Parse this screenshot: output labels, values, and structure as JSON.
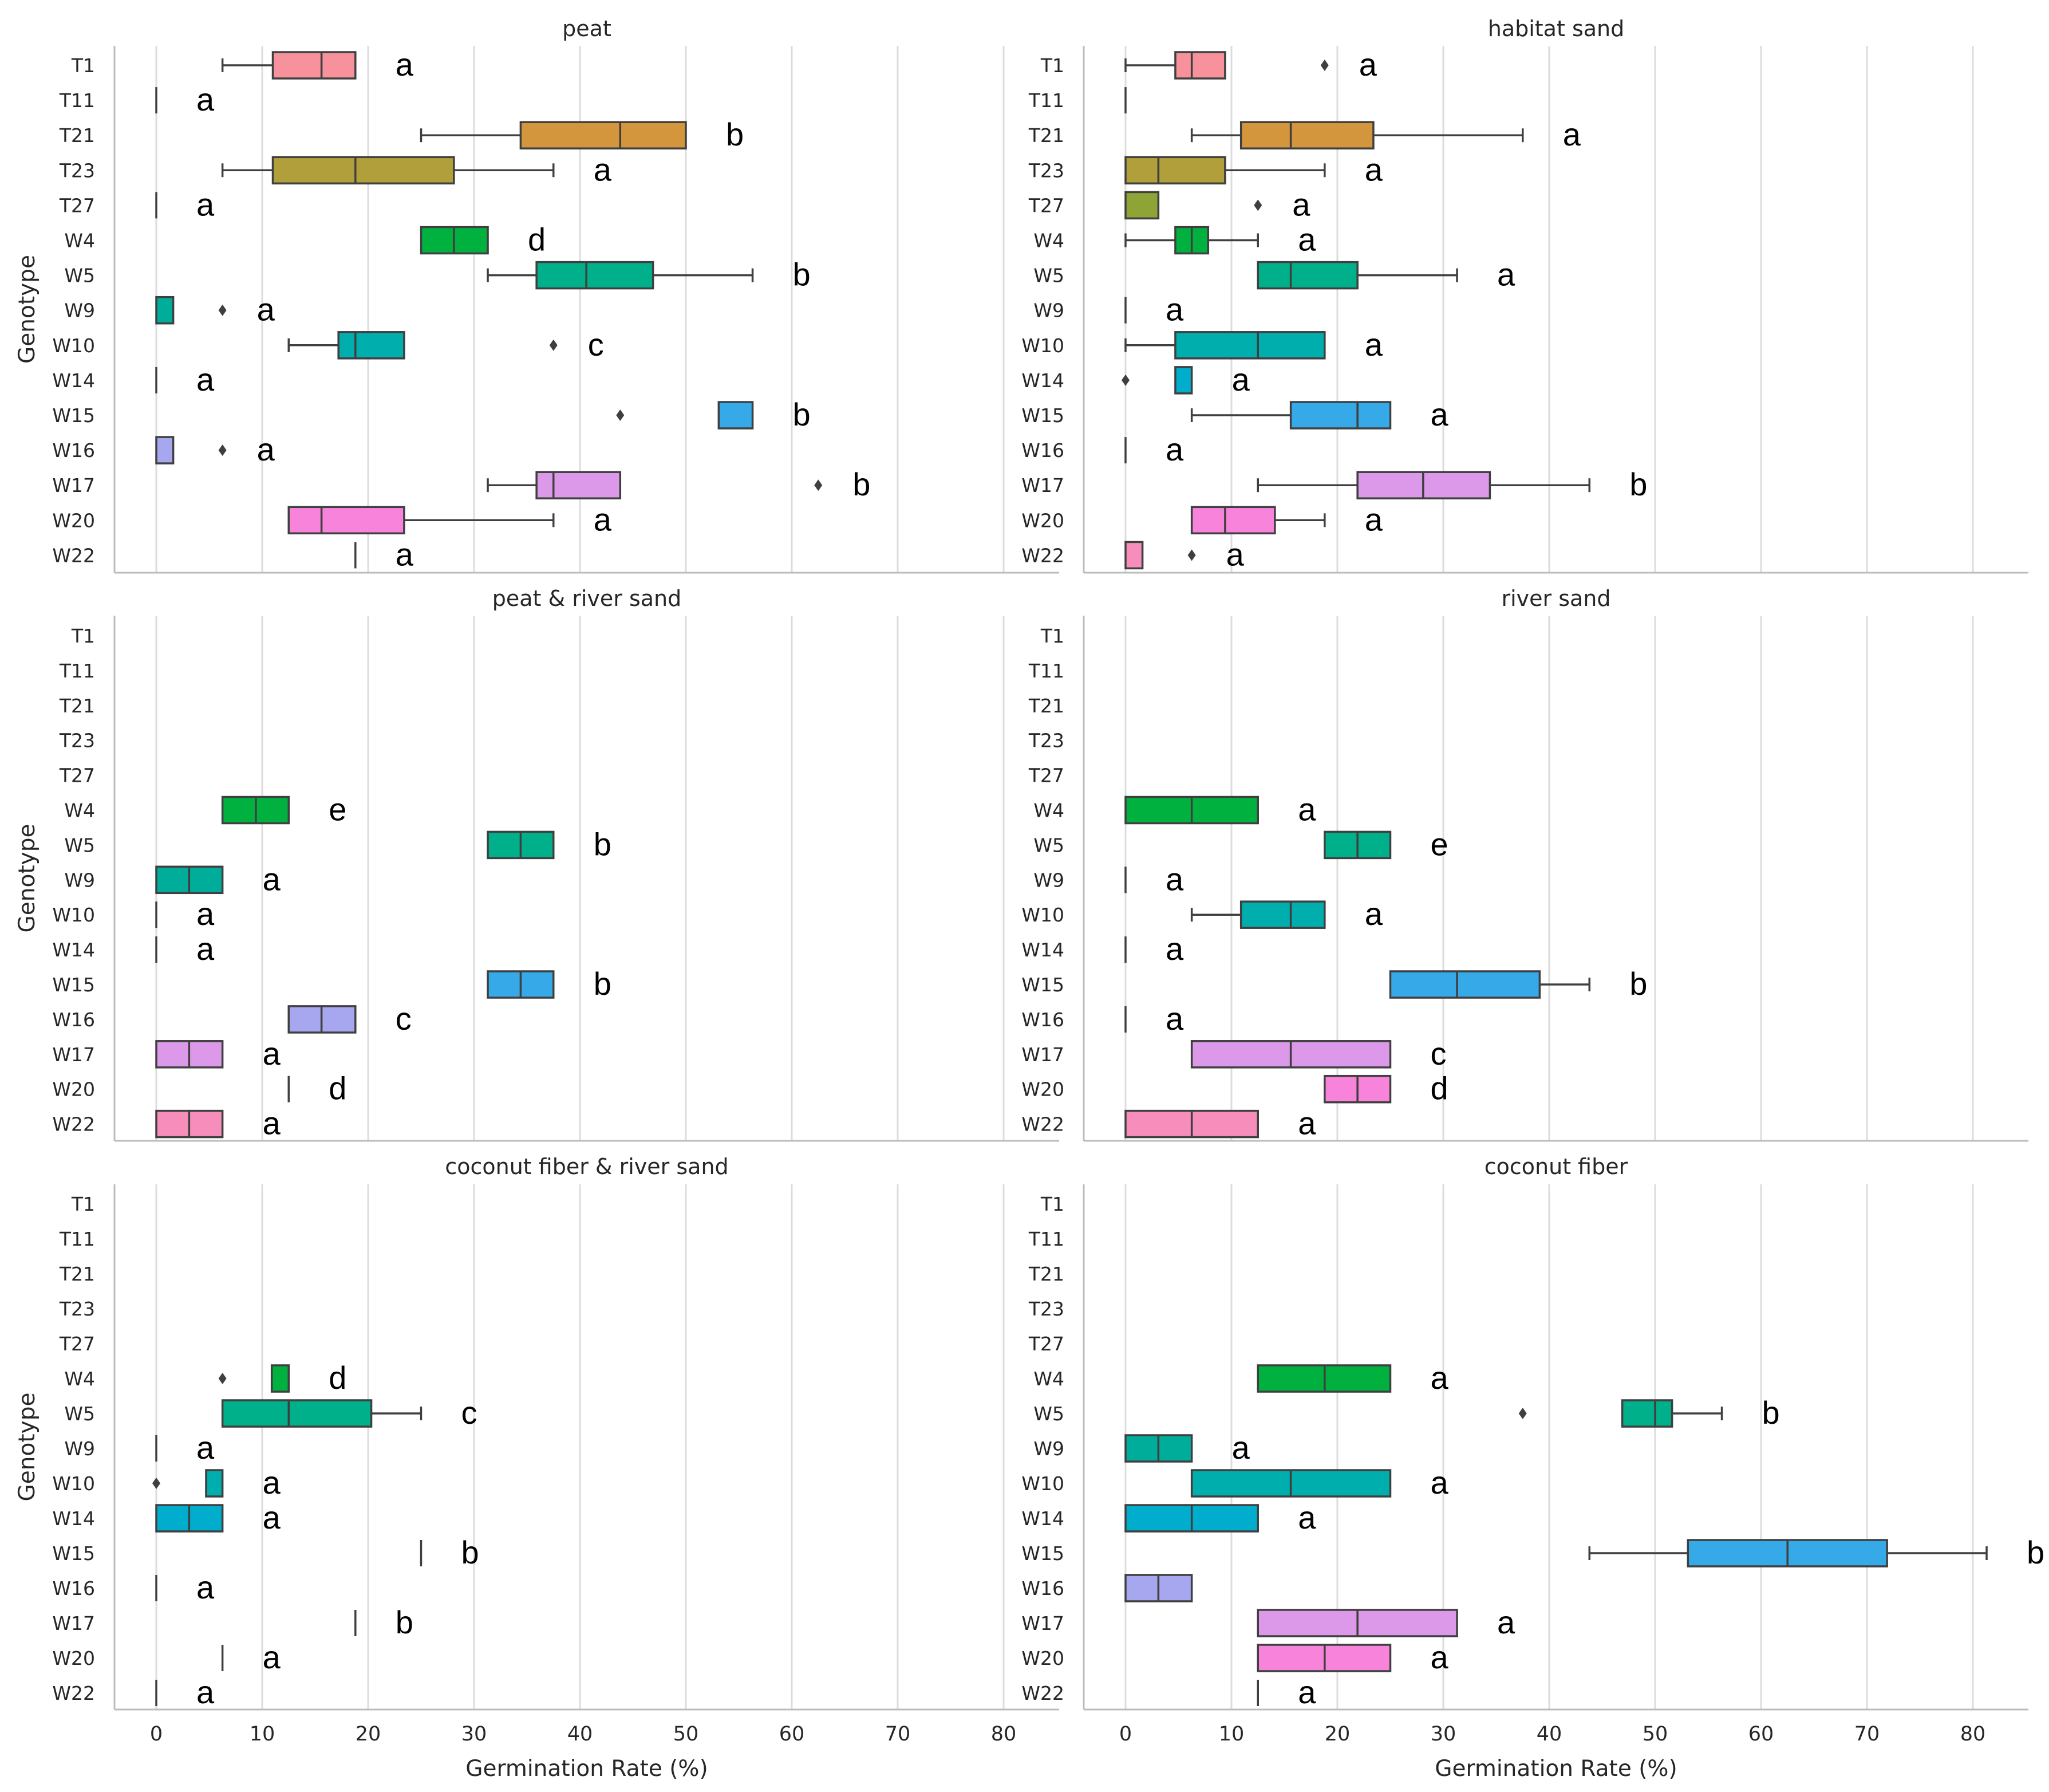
{
  "chart_data": [
    {
      "type": "box",
      "title": "peat",
      "ylabel": "Genotype",
      "xlabel": "",
      "xlim": [
        -4,
        85
      ],
      "xticks": [
        0,
        10,
        20,
        30,
        40,
        50,
        60,
        70,
        80
      ],
      "grid": "vertical",
      "categories": [
        "T1",
        "T11",
        "T21",
        "T23",
        "T27",
        "W4",
        "W5",
        "W9",
        "W10",
        "W14",
        "W15",
        "W16",
        "W17",
        "W20",
        "W22"
      ],
      "boxes": [
        {
          "min": 6.25,
          "q1": 11,
          "median": 15.6,
          "q3": 18.8,
          "max": 18.8,
          "outliers": [],
          "letter": "a"
        },
        {
          "min": 0,
          "q1": 0,
          "median": 0,
          "q3": 0,
          "max": 0,
          "outliers": [],
          "letter": "a"
        },
        {
          "min": 25,
          "q1": 34.4,
          "median": 43.8,
          "q3": 50,
          "max": 50,
          "outliers": [],
          "letter": "b"
        },
        {
          "min": 6.25,
          "q1": 11,
          "median": 18.8,
          "q3": 28.1,
          "max": 37.5,
          "outliers": [],
          "letter": "a"
        },
        {
          "min": 0,
          "q1": 0,
          "median": 0,
          "q3": 0,
          "max": 0,
          "outliers": [],
          "letter": "a"
        },
        {
          "min": 25,
          "q1": 25,
          "median": 28.1,
          "q3": 31.3,
          "max": 31.3,
          "outliers": [],
          "letter": "d"
        },
        {
          "min": 31.3,
          "q1": 35.9,
          "median": 40.6,
          "q3": 46.9,
          "max": 56.3,
          "outliers": [],
          "letter": "b"
        },
        {
          "min": 0,
          "q1": 0,
          "median": 0,
          "q3": 1.6,
          "max": 1.6,
          "outliers": [
            6.25
          ],
          "letter": "a"
        },
        {
          "min": 12.5,
          "q1": 17.2,
          "median": 18.8,
          "q3": 23.4,
          "max": 23.4,
          "outliers": [
            37.5
          ],
          "letter": "c"
        },
        {
          "min": 0,
          "q1": 0,
          "median": 0,
          "q3": 0,
          "max": 0,
          "outliers": [],
          "letter": "a"
        },
        {
          "min": 53.1,
          "q1": 53.1,
          "median": 53.1,
          "q3": 56.3,
          "max": 56.3,
          "outliers": [
            43.8
          ],
          "letter": "b"
        },
        {
          "min": 0,
          "q1": 0,
          "median": 0,
          "q3": 1.6,
          "max": 1.6,
          "outliers": [
            6.25
          ],
          "letter": "a"
        },
        {
          "min": 31.3,
          "q1": 35.9,
          "median": 37.5,
          "q3": 43.8,
          "max": 43.8,
          "outliers": [
            62.5
          ],
          "letter": "b"
        },
        {
          "min": 12.5,
          "q1": 12.5,
          "median": 15.6,
          "q3": 23.4,
          "max": 37.5,
          "outliers": [],
          "letter": "a"
        },
        {
          "min": 18.8,
          "q1": 18.8,
          "median": 18.8,
          "q3": 18.8,
          "max": 18.8,
          "outliers": [],
          "letter": "a"
        }
      ]
    },
    {
      "type": "box",
      "title": "habitat sand",
      "ylabel": "",
      "xlabel": "",
      "xlim": [
        -4,
        85
      ],
      "xticks": [
        0,
        10,
        20,
        30,
        40,
        50,
        60,
        70,
        80
      ],
      "grid": "vertical",
      "categories": [
        "T1",
        "T11",
        "T21",
        "T23",
        "T27",
        "W4",
        "W5",
        "W9",
        "W10",
        "W14",
        "W15",
        "W16",
        "W17",
        "W20",
        "W22"
      ],
      "boxes": [
        {
          "min": 0,
          "q1": 4.7,
          "median": 6.25,
          "q3": 9.4,
          "max": 9.4,
          "outliers": [
            18.8
          ],
          "letter": "a"
        },
        {
          "min": 0,
          "q1": 0,
          "median": 0,
          "q3": 0,
          "max": 0,
          "outliers": [],
          "letter": ""
        },
        {
          "min": 6.25,
          "q1": 10.9,
          "median": 15.6,
          "q3": 23.4,
          "max": 37.5,
          "outliers": [],
          "letter": "a"
        },
        {
          "min": 0,
          "q1": 0,
          "median": 3.1,
          "q3": 9.4,
          "max": 18.8,
          "outliers": [],
          "letter": "a"
        },
        {
          "min": 0,
          "q1": 0,
          "median": 0,
          "q3": 3.1,
          "max": 3.1,
          "outliers": [
            12.5
          ],
          "letter": "a"
        },
        {
          "min": 0,
          "q1": 4.7,
          "median": 6.25,
          "q3": 7.8,
          "max": 12.5,
          "outliers": [],
          "letter": "a"
        },
        {
          "min": 12.5,
          "q1": 12.5,
          "median": 15.6,
          "q3": 21.9,
          "max": 31.3,
          "outliers": [],
          "letter": "a"
        },
        {
          "min": 0,
          "q1": 0,
          "median": 0,
          "q3": 0,
          "max": 0,
          "outliers": [],
          "letter": "a"
        },
        {
          "min": 0,
          "q1": 4.7,
          "median": 12.5,
          "q3": 18.8,
          "max": 18.8,
          "outliers": [],
          "letter": "a"
        },
        {
          "min": 4.7,
          "q1": 4.7,
          "median": 4.7,
          "q3": 6.25,
          "max": 6.25,
          "outliers": [
            0
          ],
          "letter": "a"
        },
        {
          "min": 6.25,
          "q1": 15.6,
          "median": 21.9,
          "q3": 25,
          "max": 25,
          "outliers": [],
          "letter": "a"
        },
        {
          "min": 0,
          "q1": 0,
          "median": 0,
          "q3": 0,
          "max": 0,
          "outliers": [],
          "letter": "a"
        },
        {
          "min": 12.5,
          "q1": 21.9,
          "median": 28.1,
          "q3": 34.4,
          "max": 43.8,
          "outliers": [],
          "letter": "b"
        },
        {
          "min": 6.25,
          "q1": 6.25,
          "median": 9.4,
          "q3": 14.1,
          "max": 18.8,
          "outliers": [],
          "letter": "a"
        },
        {
          "min": 0,
          "q1": 0,
          "median": 0,
          "q3": 1.6,
          "max": 1.6,
          "outliers": [
            6.25
          ],
          "letter": "a"
        }
      ]
    },
    {
      "type": "box",
      "title": "peat & river sand",
      "ylabel": "Genotype",
      "xlabel": "",
      "xlim": [
        -4,
        85
      ],
      "xticks": [
        0,
        10,
        20,
        30,
        40,
        50,
        60,
        70,
        80
      ],
      "grid": "vertical",
      "categories": [
        "T1",
        "T11",
        "T21",
        "T23",
        "T27",
        "W4",
        "W5",
        "W9",
        "W10",
        "W14",
        "W15",
        "W16",
        "W17",
        "W20",
        "W22"
      ],
      "boxes": [
        null,
        null,
        null,
        null,
        null,
        {
          "min": 6.25,
          "q1": 6.25,
          "median": 9.4,
          "q3": 12.5,
          "max": 12.5,
          "outliers": [],
          "letter": "e"
        },
        {
          "min": 31.3,
          "q1": 31.3,
          "median": 34.4,
          "q3": 37.5,
          "max": 37.5,
          "outliers": [],
          "letter": "b"
        },
        {
          "min": 0,
          "q1": 0,
          "median": 3.1,
          "q3": 6.25,
          "max": 6.25,
          "outliers": [],
          "letter": "a"
        },
        {
          "min": 0,
          "q1": 0,
          "median": 0,
          "q3": 0,
          "max": 0,
          "outliers": [],
          "letter": "a"
        },
        {
          "min": 0,
          "q1": 0,
          "median": 0,
          "q3": 0,
          "max": 0,
          "outliers": [],
          "letter": "a"
        },
        {
          "min": 31.3,
          "q1": 31.3,
          "median": 34.4,
          "q3": 37.5,
          "max": 37.5,
          "outliers": [],
          "letter": "b"
        },
        {
          "min": 12.5,
          "q1": 12.5,
          "median": 15.6,
          "q3": 18.8,
          "max": 18.8,
          "outliers": [],
          "letter": "c"
        },
        {
          "min": 0,
          "q1": 0,
          "median": 3.1,
          "q3": 6.25,
          "max": 6.25,
          "outliers": [],
          "letter": "a"
        },
        {
          "min": 12.5,
          "q1": 12.5,
          "median": 12.5,
          "q3": 12.5,
          "max": 12.5,
          "outliers": [],
          "letter": "d"
        },
        {
          "min": 0,
          "q1": 0,
          "median": 3.1,
          "q3": 6.25,
          "max": 6.25,
          "outliers": [],
          "letter": "a"
        }
      ]
    },
    {
      "type": "box",
      "title": "river sand",
      "ylabel": "",
      "xlabel": "",
      "xlim": [
        -4,
        85
      ],
      "xticks": [
        0,
        10,
        20,
        30,
        40,
        50,
        60,
        70,
        80
      ],
      "grid": "vertical",
      "categories": [
        "T1",
        "T11",
        "T21",
        "T23",
        "T27",
        "W4",
        "W5",
        "W9",
        "W10",
        "W14",
        "W15",
        "W16",
        "W17",
        "W20",
        "W22"
      ],
      "boxes": [
        null,
        null,
        null,
        null,
        null,
        {
          "min": 0,
          "q1": 0,
          "median": 6.25,
          "q3": 12.5,
          "max": 12.5,
          "outliers": [],
          "letter": "a"
        },
        {
          "min": 18.8,
          "q1": 18.8,
          "median": 21.9,
          "q3": 25,
          "max": 25,
          "outliers": [],
          "letter": "e"
        },
        {
          "min": 0,
          "q1": 0,
          "median": 0,
          "q3": 0,
          "max": 0,
          "outliers": [],
          "letter": "a"
        },
        {
          "min": 6.25,
          "q1": 10.9,
          "median": 15.6,
          "q3": 18.8,
          "max": 18.8,
          "outliers": [],
          "letter": "a"
        },
        {
          "min": 0,
          "q1": 0,
          "median": 0,
          "q3": 0,
          "max": 0,
          "outliers": [],
          "letter": "a"
        },
        {
          "min": 25,
          "q1": 25,
          "median": 31.3,
          "q3": 39.1,
          "max": 43.8,
          "outliers": [],
          "letter": "b"
        },
        {
          "min": 0,
          "q1": 0,
          "median": 0,
          "q3": 0,
          "max": 0,
          "outliers": [],
          "letter": "a"
        },
        {
          "min": 6.25,
          "q1": 6.25,
          "median": 15.6,
          "q3": 25,
          "max": 25,
          "outliers": [],
          "letter": "c"
        },
        {
          "min": 18.8,
          "q1": 18.8,
          "median": 21.9,
          "q3": 25,
          "max": 25,
          "outliers": [],
          "letter": "d"
        },
        {
          "min": 0,
          "q1": 0,
          "median": 6.25,
          "q3": 12.5,
          "max": 12.5,
          "outliers": [],
          "letter": "a"
        }
      ]
    },
    {
      "type": "box",
      "title": "coconut fiber & river sand",
      "ylabel": "Genotype",
      "xlabel": "Germination Rate (%)",
      "xlim": [
        -4,
        85
      ],
      "xticks": [
        0,
        10,
        20,
        30,
        40,
        50,
        60,
        70,
        80
      ],
      "grid": "vertical",
      "categories": [
        "T1",
        "T11",
        "T21",
        "T23",
        "T27",
        "W4",
        "W5",
        "W9",
        "W10",
        "W14",
        "W15",
        "W16",
        "W17",
        "W20",
        "W22"
      ],
      "boxes": [
        null,
        null,
        null,
        null,
        null,
        {
          "min": 10.9,
          "q1": 10.9,
          "median": 12.5,
          "q3": 12.5,
          "max": 12.5,
          "outliers": [
            6.25
          ],
          "letter": "d"
        },
        {
          "min": 6.25,
          "q1": 6.25,
          "median": 12.5,
          "q3": 20.3,
          "max": 25,
          "outliers": [],
          "letter": "c"
        },
        {
          "min": 0,
          "q1": 0,
          "median": 0,
          "q3": 0,
          "max": 0,
          "outliers": [],
          "letter": "a"
        },
        {
          "min": 4.7,
          "q1": 4.7,
          "median": 6.25,
          "q3": 6.25,
          "max": 6.25,
          "outliers": [
            0
          ],
          "letter": "a"
        },
        {
          "min": 0,
          "q1": 0,
          "median": 3.1,
          "q3": 6.25,
          "max": 6.25,
          "outliers": [],
          "letter": "a"
        },
        {
          "min": 25,
          "q1": 25,
          "median": 25,
          "q3": 25,
          "max": 25,
          "outliers": [],
          "letter": "b"
        },
        {
          "min": 0,
          "q1": 0,
          "median": 0,
          "q3": 0,
          "max": 0,
          "outliers": [],
          "letter": "a"
        },
        {
          "min": 18.8,
          "q1": 18.8,
          "median": 18.8,
          "q3": 18.8,
          "max": 18.8,
          "outliers": [],
          "letter": "b"
        },
        {
          "min": 6.25,
          "q1": 6.25,
          "median": 6.25,
          "q3": 6.25,
          "max": 6.25,
          "outliers": [],
          "letter": "a"
        },
        {
          "min": 0,
          "q1": 0,
          "median": 0,
          "q3": 0,
          "max": 0,
          "outliers": [],
          "letter": "a"
        }
      ]
    },
    {
      "type": "box",
      "title": "coconut fiber",
      "ylabel": "",
      "xlabel": "Germination Rate (%)",
      "xlim": [
        -4,
        85
      ],
      "xticks": [
        0,
        10,
        20,
        30,
        40,
        50,
        60,
        70,
        80
      ],
      "grid": "vertical",
      "categories": [
        "T1",
        "T11",
        "T21",
        "T23",
        "T27",
        "W4",
        "W5",
        "W9",
        "W10",
        "W14",
        "W15",
        "W16",
        "W17",
        "W20",
        "W22"
      ],
      "boxes": [
        null,
        null,
        null,
        null,
        null,
        {
          "min": 12.5,
          "q1": 12.5,
          "median": 18.8,
          "q3": 25,
          "max": 25,
          "outliers": [],
          "letter": "a"
        },
        {
          "min": 46.9,
          "q1": 46.9,
          "median": 50,
          "q3": 51.6,
          "max": 56.3,
          "outliers": [
            37.5
          ],
          "letter": "b"
        },
        {
          "min": 0,
          "q1": 0,
          "median": 3.1,
          "q3": 6.25,
          "max": 6.25,
          "outliers": [],
          "letter": "a"
        },
        {
          "min": 6.25,
          "q1": 6.25,
          "median": 15.6,
          "q3": 25,
          "max": 25,
          "outliers": [],
          "letter": "a"
        },
        {
          "min": 0,
          "q1": 0,
          "median": 6.25,
          "q3": 12.5,
          "max": 12.5,
          "outliers": [],
          "letter": "a"
        },
        {
          "min": 43.8,
          "q1": 53.1,
          "median": 62.5,
          "q3": 71.9,
          "max": 81.3,
          "outliers": [],
          "letter": "b"
        },
        {
          "min": 0,
          "q1": 0,
          "median": 3.1,
          "q3": 6.25,
          "max": 6.25,
          "outliers": [],
          "letter": ""
        },
        {
          "min": 12.5,
          "q1": 12.5,
          "median": 21.9,
          "q3": 31.3,
          "max": 31.3,
          "outliers": [],
          "letter": "a"
        },
        {
          "min": 12.5,
          "q1": 12.5,
          "median": 18.8,
          "q3": 25,
          "max": 25,
          "outliers": [],
          "letter": "a"
        },
        {
          "min": 12.5,
          "q1": 12.5,
          "median": 12.5,
          "q3": 12.5,
          "max": 12.5,
          "outliers": [],
          "letter": "a"
        }
      ]
    }
  ],
  "colors": {
    "T1": "#f7919b",
    "T11": "#f2a061",
    "T21": "#d4963c",
    "T23": "#b09f3b",
    "T27": "#8fa436",
    "W4": "#00b13f",
    "W5": "#00b08a",
    "W9": "#00ad9b",
    "W10": "#00aead",
    "W14": "#00adcd",
    "W15": "#36a9e9",
    "W16": "#a6a7ee",
    "W17": "#dc98e9",
    "W20": "#f883db",
    "W22": "#f68dbb"
  }
}
